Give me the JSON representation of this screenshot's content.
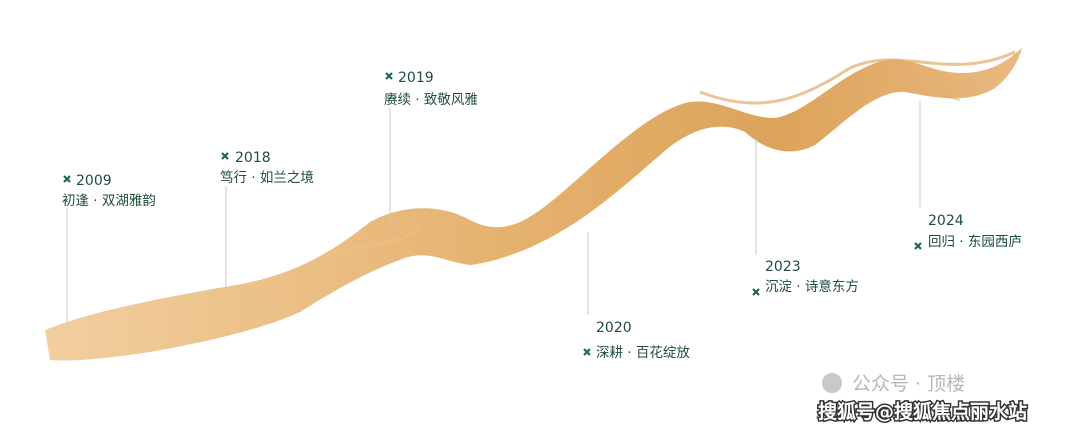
{
  "milestones": [
    {
      "year": "2009",
      "label": "初逢 · 双湖雅韵"
    },
    {
      "year": "2018",
      "label": "笃行 · 如兰之境"
    },
    {
      "year": "2019",
      "label": "赓续 · 致敬风雅"
    },
    {
      "year": "2020",
      "label": "深耕 · 百花绽放"
    },
    {
      "year": "2023",
      "label": "沉淀 · 诗意东方"
    },
    {
      "year": "2024",
      "label": "回归 · 东园西庐"
    }
  ],
  "watermark": {
    "account": "公众号 · 顶楼",
    "source": "搜狐号@搜狐焦点丽水站"
  }
}
